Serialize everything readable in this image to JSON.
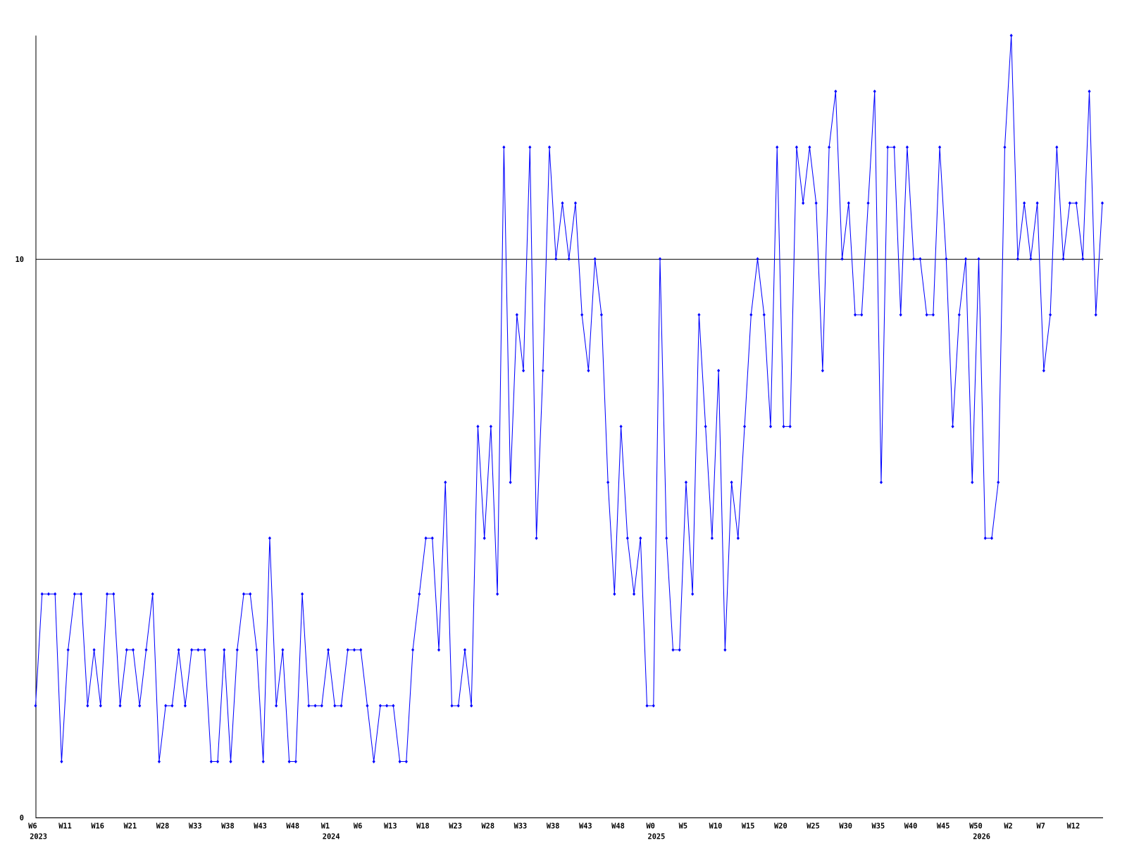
{
  "chart_data": {
    "type": "line",
    "categories": [
      "W6",
      null,
      null,
      null,
      null,
      "W11",
      null,
      null,
      null,
      null,
      "W16",
      null,
      null,
      null,
      null,
      "W21",
      null,
      null,
      null,
      null,
      "W28",
      null,
      null,
      null,
      null,
      "W33",
      null,
      null,
      null,
      null,
      "W38",
      null,
      null,
      null,
      null,
      "W43",
      null,
      null,
      null,
      null,
      "W48",
      null,
      null,
      null,
      null,
      "W1",
      null,
      null,
      null,
      null,
      "W6",
      null,
      null,
      null,
      null,
      "W13",
      null,
      null,
      null,
      null,
      "W18",
      null,
      null,
      null,
      null,
      "W23",
      null,
      null,
      null,
      null,
      "W28",
      null,
      null,
      null,
      null,
      "W33",
      null,
      null,
      null,
      null,
      "W38",
      null,
      null,
      null,
      null,
      "W43",
      null,
      null,
      null,
      null,
      "W48",
      null,
      null,
      null,
      null,
      "W0",
      null,
      null,
      null,
      null,
      "W5",
      null,
      null,
      null,
      null,
      "W10",
      null,
      null,
      null,
      null,
      "W15",
      null,
      null,
      null,
      null,
      "W20",
      null,
      null,
      null,
      null,
      "W25",
      null,
      null,
      null,
      null,
      "W30",
      null,
      null,
      null,
      null,
      "W35",
      null,
      null,
      null,
      null,
      "W40",
      null,
      null,
      null,
      null,
      "W45",
      null,
      null,
      null,
      null,
      "W50",
      null,
      null,
      null,
      null,
      "W2",
      null,
      null,
      null,
      null,
      "W7",
      null,
      null,
      null,
      null,
      "W12",
      null,
      null,
      null,
      null
    ],
    "year_labels": [
      "2023",
      null,
      null,
      null,
      null,
      null,
      null,
      null,
      null,
      null,
      null,
      null,
      null,
      null,
      null,
      null,
      null,
      null,
      null,
      null,
      null,
      null,
      null,
      null,
      null,
      null,
      null,
      null,
      null,
      null,
      null,
      null,
      null,
      null,
      null,
      null,
      null,
      null,
      null,
      null,
      null,
      null,
      null,
      null,
      null,
      "2024",
      null,
      null,
      null,
      null,
      null,
      null,
      null,
      null,
      null,
      null,
      null,
      null,
      null,
      null,
      null,
      null,
      null,
      null,
      null,
      null,
      null,
      null,
      null,
      null,
      null,
      null,
      null,
      null,
      null,
      null,
      null,
      null,
      null,
      null,
      null,
      null,
      null,
      null,
      null,
      null,
      null,
      null,
      null,
      null,
      null,
      null,
      null,
      null,
      null,
      "2025",
      null,
      null,
      null,
      null,
      null,
      null,
      null,
      null,
      null,
      null,
      null,
      null,
      null,
      null,
      null,
      null,
      null,
      null,
      null,
      null,
      null,
      null,
      null,
      null,
      null,
      null,
      null,
      null,
      null,
      null,
      null,
      null,
      null,
      null,
      null,
      null,
      null,
      null,
      null,
      null,
      null,
      null,
      null,
      null,
      null,
      null,
      null,
      null,
      null,
      "2026",
      null,
      null,
      null,
      null,
      null,
      null,
      null,
      null,
      null,
      null,
      null,
      null,
      null,
      null
    ],
    "series": [
      {
        "color": "#0000ff",
        "values": [
          2,
          4,
          4,
          4,
          1,
          3,
          4,
          4,
          2,
          3,
          2,
          4,
          4,
          2,
          3,
          3,
          2,
          3,
          4,
          1,
          2,
          2,
          3,
          2,
          3,
          3,
          3,
          1,
          1,
          3,
          1,
          3,
          4,
          4,
          3,
          1,
          5,
          2,
          3,
          1,
          1,
          4,
          2,
          2,
          2,
          3,
          2,
          2,
          3,
          3,
          3,
          2,
          1,
          2,
          2,
          2,
          1,
          1,
          3,
          4,
          5,
          5,
          3,
          6,
          2,
          2,
          3,
          2,
          7,
          5,
          7,
          4,
          12,
          6,
          9,
          8,
          12,
          5,
          8,
          12,
          10,
          11,
          10,
          11,
          9,
          8,
          10,
          9,
          6,
          4,
          7,
          5,
          4,
          5,
          2,
          2,
          10,
          5,
          3,
          3,
          6,
          4,
          9,
          7,
          5,
          8,
          3,
          6,
          5,
          7,
          9,
          10,
          9,
          7,
          12,
          7,
          7,
          12,
          11,
          12,
          11,
          8,
          12,
          13,
          10,
          11,
          9,
          9,
          11,
          13,
          6,
          12,
          12,
          9,
          12,
          10,
          10,
          9,
          9,
          12,
          10,
          7,
          9,
          10,
          6,
          10,
          5,
          5,
          6,
          12,
          14,
          10,
          11,
          10,
          11,
          8,
          9,
          12,
          10,
          11,
          11,
          10,
          13,
          9,
          11
        ]
      }
    ],
    "ylim": [
      0,
      14
    ],
    "yticks": [
      0,
      10
    ],
    "grid": true
  }
}
